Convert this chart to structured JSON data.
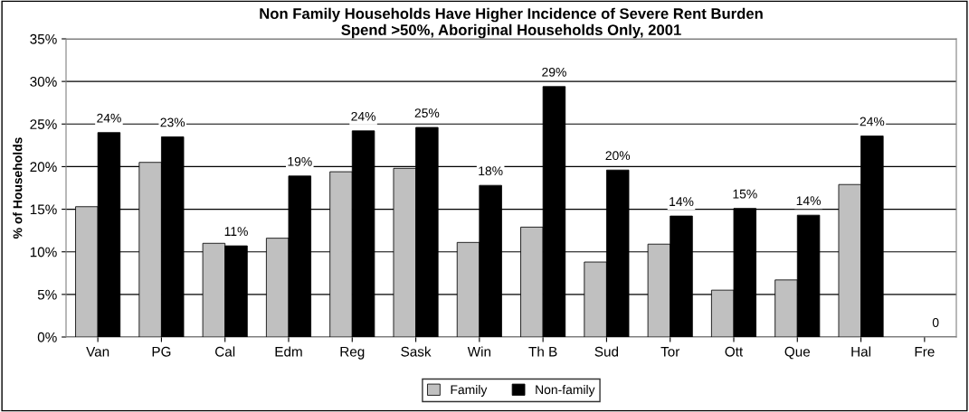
{
  "chart_data": {
    "type": "bar",
    "title": "Non Family Households Have Higher Incidence of Severe Rent Burden\nSpend >50%, Aboriginal Households Only, 2001",
    "ylabel": "% of Households",
    "categories": [
      "Van",
      "PG",
      "Cal",
      "Edm",
      "Reg",
      "Sask",
      "Win",
      "Th B",
      "Sud",
      "Tor",
      "Ott",
      "Que",
      "Hal",
      "Fre"
    ],
    "series": [
      {
        "name": "Family",
        "color": "#c0c0c0",
        "values": [
          15.3,
          20.5,
          11.0,
          11.6,
          19.4,
          19.8,
          11.1,
          12.9,
          8.8,
          10.9,
          5.5,
          6.7,
          17.9,
          0
        ]
      },
      {
        "name": "Non-family",
        "color": "#000000",
        "values": [
          24.0,
          23.5,
          10.7,
          18.9,
          24.2,
          24.6,
          17.8,
          29.4,
          19.6,
          14.2,
          15.1,
          14.3,
          23.6,
          0
        ],
        "value_labels": [
          "24%",
          "23%",
          "11%",
          "19%",
          "24%",
          "25%",
          "18%",
          "29%",
          "20%",
          "14%",
          "15%",
          "14%",
          "24%",
          "0"
        ]
      }
    ],
    "ylim": [
      0,
      35
    ],
    "yticks": [
      {
        "value": 0,
        "label": "0%"
      },
      {
        "value": 5,
        "label": "5%"
      },
      {
        "value": 10,
        "label": "10%"
      },
      {
        "value": 15,
        "label": "15%"
      },
      {
        "value": 20,
        "label": "20%"
      },
      {
        "value": 25,
        "label": "25%"
      },
      {
        "value": 30,
        "label": "30%"
      },
      {
        "value": 35,
        "label": "35%"
      }
    ],
    "grid": "y",
    "legend": "bottom"
  }
}
